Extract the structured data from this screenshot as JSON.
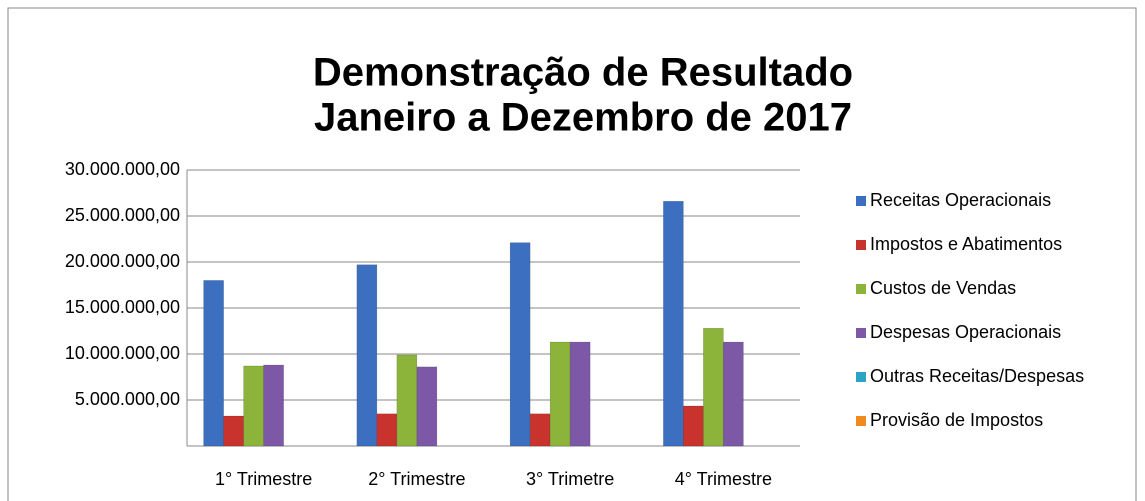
{
  "chart_data": {
    "type": "bar",
    "title": [
      "Demonstração de Resultado",
      "Janeiro a Dezembro de 2017"
    ],
    "categories": [
      "1° Trimestre",
      "2° Trimestre",
      "3° Trimetre",
      "4° Trimestre"
    ],
    "series": [
      {
        "name": "Receitas Operacionais",
        "color": "#3d6fc0",
        "values": [
          18000000,
          19700000,
          22100000,
          26600000
        ]
      },
      {
        "name": "Impostos e Abatimentos",
        "color": "#c9332d",
        "values": [
          3260000,
          3500000,
          3500000,
          4350000
        ]
      },
      {
        "name": "Custos de Vendas",
        "color": "#8cb43a",
        "values": [
          8700000,
          9900000,
          11300000,
          12800000
        ]
      },
      {
        "name": "Despesas Operacionais",
        "color": "#7c58a6",
        "values": [
          8800000,
          8600000,
          11300000,
          11300000
        ]
      },
      {
        "name": "Outras Receitas/Despesas",
        "color": "#2ba5c3",
        "values": [
          0,
          0,
          0,
          0
        ]
      },
      {
        "name": "Provisão de Impostos",
        "color": "#ef8a1e",
        "values": [
          0,
          0,
          0,
          0
        ]
      }
    ],
    "ylim": [
      0,
      30000000
    ],
    "yticks": [
      {
        "value": 5000000,
        "label": "5.000.000,00"
      },
      {
        "value": 10000000,
        "label": "10.000.000,00"
      },
      {
        "value": 15000000,
        "label": "15.000.000,00"
      },
      {
        "value": 20000000,
        "label": "20.000.000,00"
      },
      {
        "value": 25000000,
        "label": "25.000.000,00"
      },
      {
        "value": 30000000,
        "label": "30.000.000,00"
      }
    ],
    "grid": true,
    "legend": "right"
  }
}
